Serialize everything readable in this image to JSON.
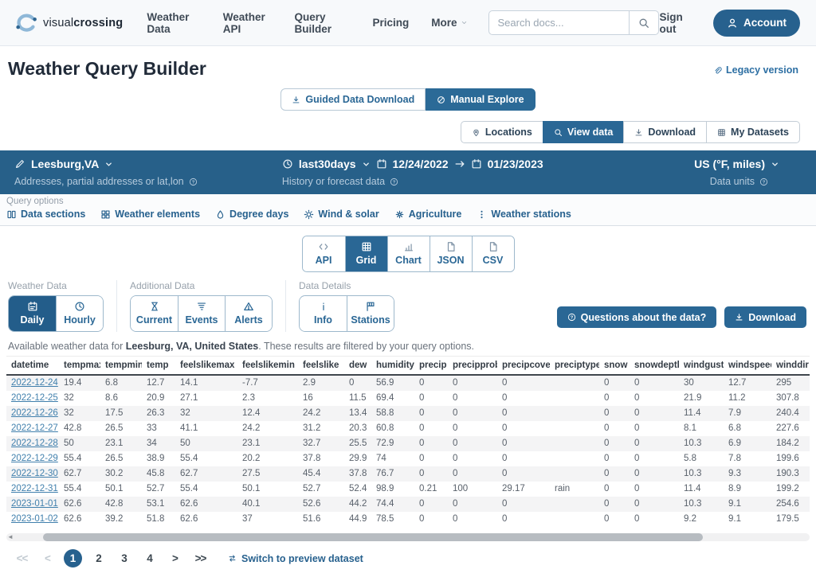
{
  "nav": {
    "brand_light": "visual",
    "brand_bold": "crossing",
    "items": [
      {
        "label": "Weather Data"
      },
      {
        "label": "Weather API"
      },
      {
        "label": "Query Builder"
      },
      {
        "label": "Pricing"
      },
      {
        "label": "More",
        "has_menu": true
      }
    ],
    "search_placeholder": "Search docs...",
    "sign_out": "Sign out",
    "account": "Account"
  },
  "header": {
    "title": "Weather Query Builder",
    "legacy_link": "Legacy version",
    "mode_buttons": [
      {
        "label": "Guided Data Download",
        "icon": "download",
        "active": false
      },
      {
        "label": "Manual Explore",
        "icon": "slash-circle",
        "active": true
      }
    ]
  },
  "view_tabs": [
    {
      "label": "Locations",
      "icon": "pin",
      "active": false
    },
    {
      "label": "View data",
      "icon": "search",
      "active": true
    },
    {
      "label": "Download",
      "icon": "download",
      "active": false
    },
    {
      "label": "My Datasets",
      "icon": "grid",
      "active": false
    }
  ],
  "query_bar": {
    "location": {
      "value": "Leesburg,VA",
      "hint": "Addresses, partial addresses or lat,lon"
    },
    "period": {
      "preset": "last30days",
      "start_date": "12/24/2022",
      "end_date": "01/23/2023",
      "hint": "History or forecast data"
    },
    "units": {
      "value": "US (°F, miles)",
      "hint": "Data units"
    }
  },
  "query_options": {
    "label": "Query options",
    "items": [
      {
        "label": "Data sections",
        "icon": "columns"
      },
      {
        "label": "Weather elements",
        "icon": "grid-small"
      },
      {
        "label": "Degree days",
        "icon": "droplet"
      },
      {
        "label": "Wind & solar",
        "icon": "sun"
      },
      {
        "label": "Agriculture",
        "icon": "flower"
      },
      {
        "label": "Weather stations",
        "icon": "dots-vertical"
      }
    ]
  },
  "output_tabs": [
    {
      "label": "API",
      "icon": "code",
      "active": false
    },
    {
      "label": "Grid",
      "icon": "grid",
      "active": true
    },
    {
      "label": "Chart",
      "icon": "chart",
      "active": false
    },
    {
      "label": "JSON",
      "icon": "file",
      "active": false
    },
    {
      "label": "CSV",
      "icon": "file",
      "active": false
    }
  ],
  "data_sections": [
    {
      "label": "Weather Data",
      "buttons": [
        {
          "label": "Daily",
          "icon": "calendar",
          "active": true
        },
        {
          "label": "Hourly",
          "icon": "clock",
          "active": false
        }
      ]
    },
    {
      "label": "Additional Data",
      "buttons": [
        {
          "label": "Current",
          "icon": "hourglass",
          "active": false
        },
        {
          "label": "Events",
          "icon": "tornado",
          "active": false
        },
        {
          "label": "Alerts",
          "icon": "warning",
          "active": false
        }
      ]
    },
    {
      "label": "Data Details",
      "buttons": [
        {
          "label": "Info",
          "icon": "info",
          "active": false
        },
        {
          "label": "Stations",
          "icon": "stations",
          "active": false
        }
      ]
    }
  ],
  "actions": {
    "questions": "Questions about the data?",
    "download": "Download"
  },
  "status_line": {
    "prefix": "Available weather data for ",
    "location": "Leesburg, VA, United States",
    "suffix": ". These results are filtered by your query options."
  },
  "table": {
    "columns": [
      "datetime",
      "tempmax",
      "tempmin",
      "temp",
      "feelslikemax",
      "feelslikemin",
      "feelslike",
      "dew",
      "humidity",
      "precip",
      "precipprob",
      "precipcover",
      "preciptype",
      "snow",
      "snowdepth",
      "windgust",
      "windspeed",
      "winddir"
    ],
    "rows": [
      [
        "2022-12-24",
        "19.4",
        "6.8",
        "12.7",
        "14.1",
        "-7.7",
        "2.9",
        "0",
        "56.9",
        "0",
        "0",
        "0",
        "",
        "0",
        "0",
        "30",
        "12.7",
        "295"
      ],
      [
        "2022-12-25",
        "32",
        "8.6",
        "20.9",
        "27.1",
        "2.3",
        "16",
        "11.5",
        "69.4",
        "0",
        "0",
        "0",
        "",
        "0",
        "0",
        "21.9",
        "11.2",
        "307.8"
      ],
      [
        "2022-12-26",
        "32",
        "17.5",
        "26.3",
        "32",
        "12.4",
        "24.2",
        "13.4",
        "58.8",
        "0",
        "0",
        "0",
        "",
        "0",
        "0",
        "11.4",
        "7.9",
        "240.4"
      ],
      [
        "2022-12-27",
        "42.8",
        "26.5",
        "33",
        "41.1",
        "24.2",
        "31.2",
        "20.3",
        "60.8",
        "0",
        "0",
        "0",
        "",
        "0",
        "0",
        "8.1",
        "6.8",
        "227.6"
      ],
      [
        "2022-12-28",
        "50",
        "23.1",
        "34",
        "50",
        "23.1",
        "32.7",
        "25.5",
        "72.9",
        "0",
        "0",
        "0",
        "",
        "0",
        "0",
        "10.3",
        "6.9",
        "184.2"
      ],
      [
        "2022-12-29",
        "55.4",
        "26.5",
        "38.9",
        "55.4",
        "20.2",
        "37.8",
        "29.9",
        "74",
        "0",
        "0",
        "0",
        "",
        "0",
        "0",
        "5.8",
        "7.8",
        "199.6"
      ],
      [
        "2022-12-30",
        "62.7",
        "30.2",
        "45.8",
        "62.7",
        "27.5",
        "45.4",
        "37.8",
        "76.7",
        "0",
        "0",
        "0",
        "",
        "0",
        "0",
        "10.3",
        "9.3",
        "190.3"
      ],
      [
        "2022-12-31",
        "55.4",
        "50.1",
        "52.7",
        "55.4",
        "50.1",
        "52.7",
        "52.4",
        "98.9",
        "0.21",
        "100",
        "29.17",
        "rain",
        "0",
        "0",
        "11.4",
        "8.9",
        "199.2"
      ],
      [
        "2023-01-01",
        "62.6",
        "42.8",
        "53.1",
        "62.6",
        "40.1",
        "52.6",
        "44.2",
        "74.4",
        "0",
        "0",
        "0",
        "",
        "0",
        "0",
        "10.3",
        "9.1",
        "254.6"
      ],
      [
        "2023-01-02",
        "62.6",
        "39.2",
        "51.8",
        "62.6",
        "37",
        "51.6",
        "44.9",
        "78.5",
        "0",
        "0",
        "0",
        "",
        "0",
        "0",
        "9.2",
        "9.1",
        "179.5"
      ]
    ]
  },
  "pagination": {
    "items": [
      {
        "label": "<<",
        "state": "disabled"
      },
      {
        "label": "<",
        "state": "disabled"
      },
      {
        "label": "1",
        "state": "active"
      },
      {
        "label": "2",
        "state": ""
      },
      {
        "label": "3",
        "state": ""
      },
      {
        "label": "4",
        "state": ""
      },
      {
        "label": ">",
        "state": ""
      },
      {
        "label": ">>",
        "state": ""
      }
    ],
    "switch_label": "Switch to preview dataset"
  }
}
